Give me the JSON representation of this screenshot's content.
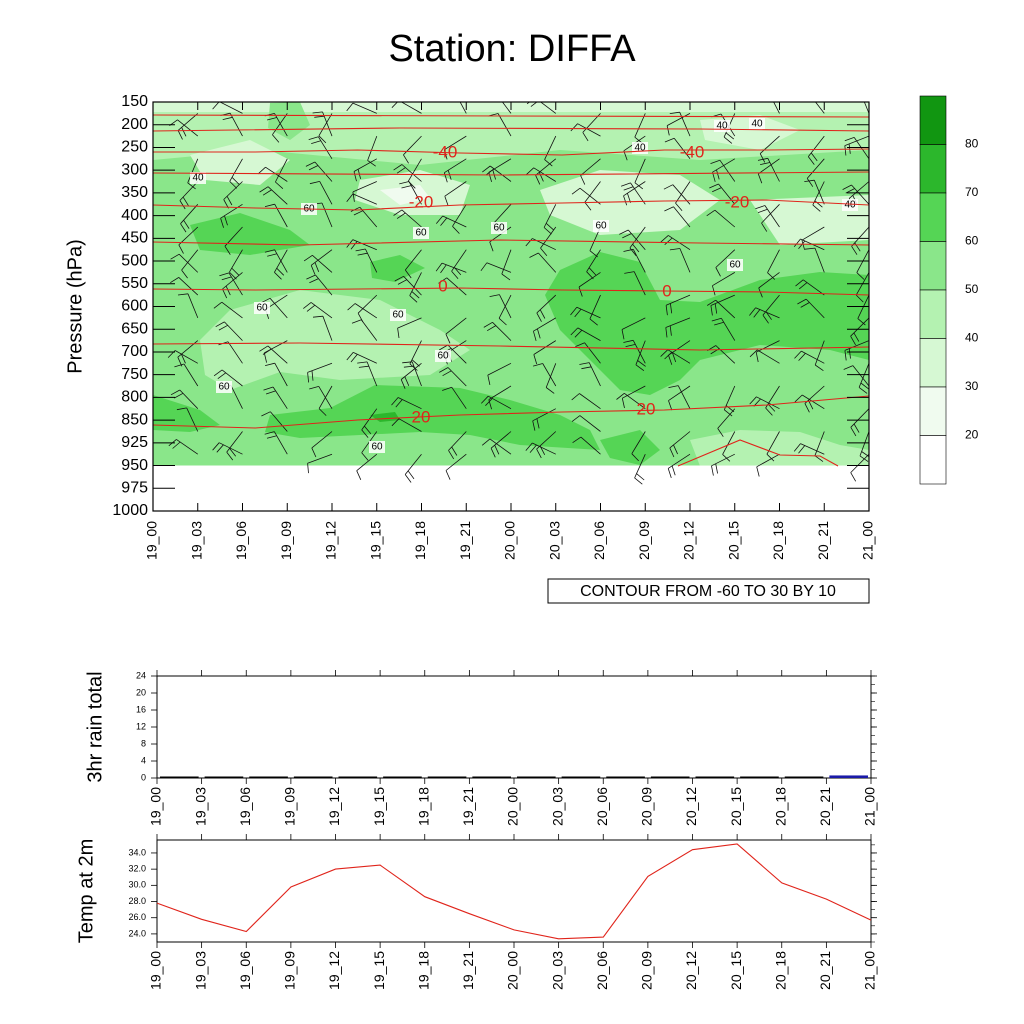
{
  "title": "Station: DIFFA",
  "colors": {
    "levels": [
      "#ffffff",
      "#f0fbef",
      "#d6f8d3",
      "#b4f2b1",
      "#8ae68a",
      "#55d555",
      "#2cb72c",
      "#119611"
    ],
    "isotherm": "#e0241b",
    "barb": "#111111",
    "rain_bar": "#1a1aa8",
    "temp_line": "#e0241b"
  },
  "chart_data": [
    {
      "type": "contour",
      "name": "relative-humidity-cross-section",
      "ylabel": "Pressure (hPa)",
      "y_ticks": [
        "150",
        "200",
        "250",
        "300",
        "350",
        "400",
        "450",
        "500",
        "550",
        "600",
        "650",
        "700",
        "750",
        "800",
        "850",
        "925",
        "950",
        "975",
        "1000"
      ],
      "x_ticks": [
        "19_00",
        "19_03",
        "19_06",
        "19_09",
        "19_12",
        "19_15",
        "19_18",
        "19_21",
        "20_00",
        "20_03",
        "20_06",
        "20_09",
        "20_12",
        "20_15",
        "20_18",
        "20_21",
        "21_00"
      ],
      "info_label": "CONTOUR FROM -60 TO 30 BY 10",
      "colorbar": {
        "boundaries": [
          "20",
          "30",
          "40",
          "50",
          "60",
          "70",
          "80"
        ]
      },
      "isotherms": [
        {
          "label": "-40",
          "values": [
            -41,
            -40,
            -40,
            -40,
            -40
          ]
        },
        {
          "label": "-20",
          "values": [
            -21,
            -20,
            -20,
            -20,
            -20
          ]
        },
        {
          "label": "0",
          "values": [
            0,
            0,
            0,
            0,
            0
          ]
        },
        {
          "label": "20",
          "values": [
            20,
            20,
            20,
            20,
            20
          ]
        }
      ],
      "rh_contour_labels": [
        "40",
        "40",
        "40",
        "40",
        "40",
        "60",
        "60",
        "60",
        "60",
        "60",
        "60",
        "60",
        "60",
        "60",
        "60"
      ]
    },
    {
      "type": "bar",
      "name": "rain",
      "ylabel": "3hr rain total",
      "ylim": [
        0,
        24
      ],
      "y_ticks": [
        "0",
        "4",
        "8",
        "12",
        "16",
        "20",
        "24"
      ],
      "x_ticks": [
        "19_00",
        "19_03",
        "19_06",
        "19_09",
        "19_12",
        "19_15",
        "19_18",
        "19_21",
        "20_00",
        "20_03",
        "20_06",
        "20_09",
        "20_12",
        "20_15",
        "20_18",
        "20_21",
        "21_00"
      ],
      "values": [
        0,
        0,
        0,
        0,
        0,
        0,
        0,
        0,
        0,
        0,
        0.1,
        0,
        0,
        0,
        0,
        0.6
      ]
    },
    {
      "type": "line",
      "name": "temperature",
      "ylabel": "Temp at 2m",
      "ylim": [
        23,
        35.6
      ],
      "y_ticks": [
        "24.0",
        "26.0",
        "28.0",
        "30.0",
        "32.0",
        "34.0"
      ],
      "x_ticks": [
        "19_00",
        "19_03",
        "19_06",
        "19_09",
        "19_12",
        "19_15",
        "19_18",
        "19_21",
        "20_00",
        "20_03",
        "20_06",
        "20_09",
        "20_12",
        "20_15",
        "20_18",
        "20_21",
        "21_00"
      ],
      "values": [
        27.8,
        25.8,
        24.3,
        29.8,
        32.0,
        32.5,
        28.6,
        26.5,
        24.5,
        23.4,
        23.6,
        31.1,
        34.4,
        35.1,
        30.3,
        28.3,
        25.7
      ]
    }
  ]
}
